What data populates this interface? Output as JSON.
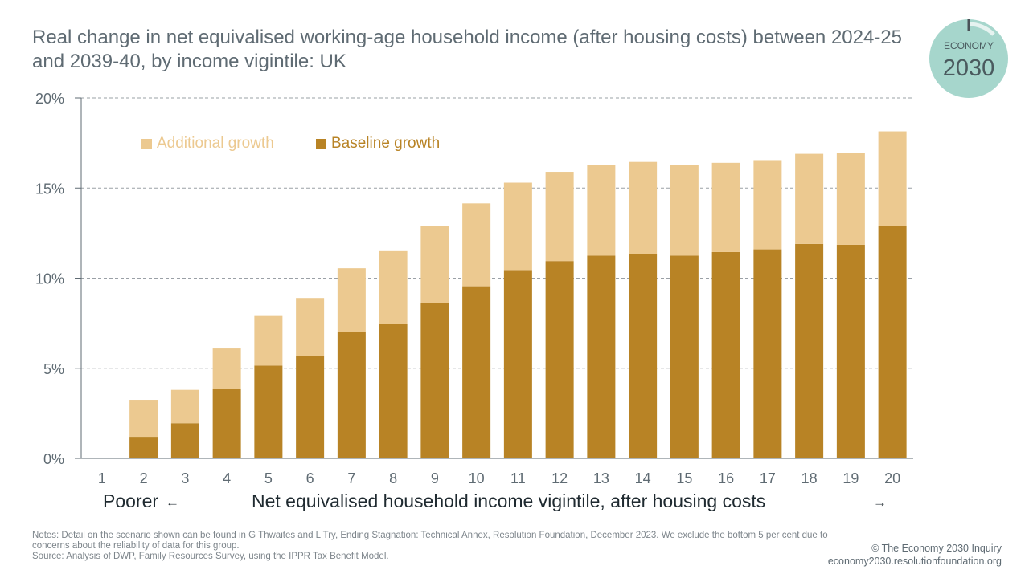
{
  "header": {
    "title": "Real change in net equivalised working-age household income (after housing costs) between 2024-25 and 2039-40, by income vigintile: UK"
  },
  "logo": {
    "top_text": "ECONOMY",
    "bottom_text": "2030",
    "color": "#a6d6cc"
  },
  "colors": {
    "baseline": "#b88325",
    "additional": "#ecc990",
    "grid": "#9aa0a6",
    "text": "#5f6b73"
  },
  "chart_data": {
    "type": "bar",
    "stacked": true,
    "categories": [
      "1",
      "2",
      "3",
      "4",
      "5",
      "6",
      "7",
      "8",
      "9",
      "10",
      "11",
      "12",
      "13",
      "14",
      "15",
      "16",
      "17",
      "18",
      "19",
      "20"
    ],
    "series": [
      {
        "name": "Baseline growth",
        "color": "#b88325",
        "values": [
          0,
          1.2,
          1.95,
          3.85,
          5.15,
          5.7,
          7.0,
          7.45,
          8.6,
          9.55,
          10.45,
          10.95,
          11.25,
          11.35,
          11.25,
          11.45,
          11.6,
          11.9,
          11.85,
          12.9
        ]
      },
      {
        "name": "Additional growth",
        "color": "#ecc990",
        "values": [
          0,
          2.05,
          1.85,
          2.25,
          2.75,
          3.2,
          3.55,
          4.05,
          4.3,
          4.6,
          4.85,
          4.95,
          5.05,
          5.1,
          5.05,
          4.95,
          4.95,
          5.0,
          5.1,
          5.25
        ]
      }
    ],
    "ylim": [
      0,
      20
    ],
    "yticks": [
      0,
      5,
      10,
      15,
      20
    ],
    "ytick_labels": [
      "0%",
      "5%",
      "10%",
      "15%",
      "20%"
    ],
    "grid": true,
    "legend": {
      "position": "top-left",
      "entries": [
        "Additional growth",
        "Baseline growth"
      ]
    },
    "xlabel": "Net equivalised household income vigintile, after housing costs",
    "x_left_label": "Poorer",
    "x_left_arrow": "←",
    "x_right_arrow": "→",
    "ylabel": "",
    "title": "Real change in net equivalised working-age household income (after housing costs) between 2024-25 and 2039-40, by income vigintile: UK"
  },
  "footer": {
    "notes": "Notes: Detail on the scenario shown can be found in G Thwaites and L Try, Ending Stagnation: Technical Annex, Resolution Foundation, December 2023. We exclude the bottom 5 per cent due to concerns about the reliability of data for this group.",
    "source": "Source: Analysis of DWP, Family Resources Survey, using the IPPR Tax Benefit Model.",
    "credit": "© The Economy 2030 Inquiry",
    "url": "economy2030.resolutionfoundation.org"
  }
}
